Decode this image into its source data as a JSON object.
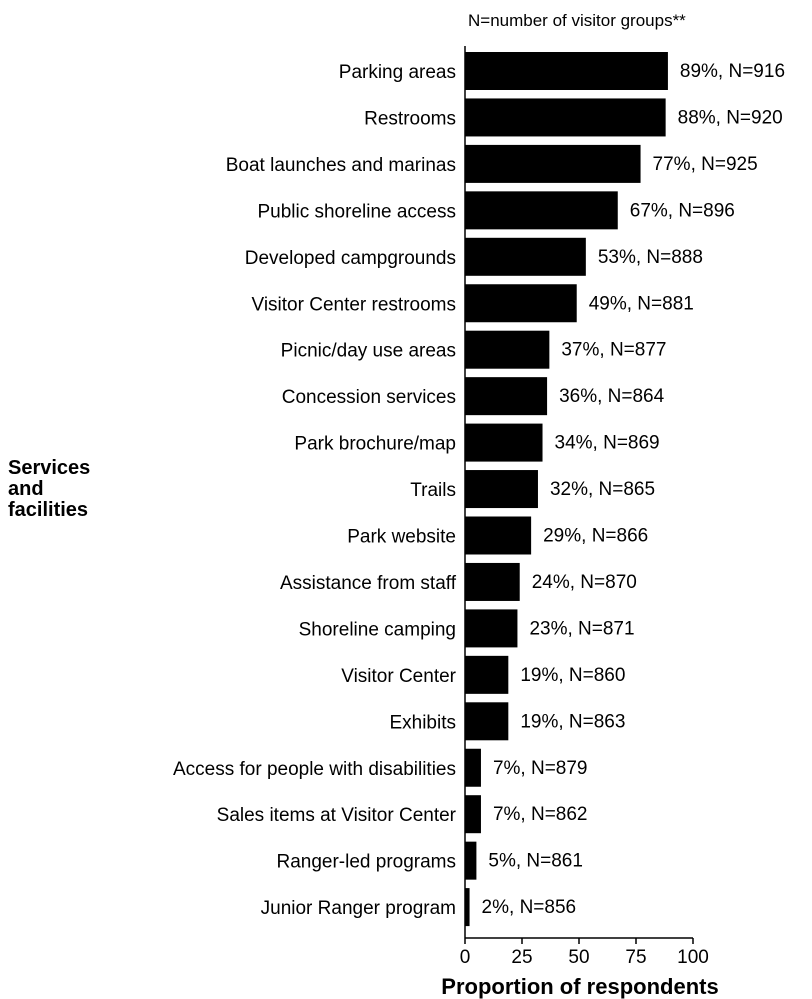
{
  "chart_data": {
    "type": "bar",
    "orientation": "horizontal",
    "note": "N=number of visitor groups**",
    "ylabel": [
      "Services",
      "and",
      "facilities"
    ],
    "xlabel": "Proportion of respondents",
    "xlim": [
      0,
      100
    ],
    "xticks": [
      0,
      25,
      50,
      75,
      100
    ],
    "grid": false,
    "bar_color": "#000000",
    "categories": [
      "Parking areas",
      "Restrooms",
      "Boat launches and marinas",
      "Public shoreline access",
      "Developed campgrounds",
      "Visitor Center restrooms",
      "Picnic/day use areas",
      "Concession services",
      "Park brochure/map",
      "Trails",
      "Park website",
      "Assistance from staff",
      "Shoreline camping",
      "Visitor Center",
      "Exhibits",
      "Access for people with disabilities",
      "Sales items at Visitor Center",
      "Ranger-led programs",
      "Junior Ranger program"
    ],
    "values": [
      89,
      88,
      77,
      67,
      53,
      49,
      37,
      36,
      34,
      32,
      29,
      24,
      23,
      19,
      19,
      7,
      7,
      5,
      2
    ],
    "data_labels": [
      "89%, N=916",
      "88%, N=920",
      "77%, N=925",
      "67%, N=896",
      "53%, N=888",
      "49%, N=881",
      "37%, N=877",
      "36%, N=864",
      "34%, N=869",
      "32%, N=865",
      "29%, N=866",
      "24%, N=870",
      "23%, N=871",
      "19%, N=860",
      "19%, N=863",
      "7%, N=879",
      "7%, N=862",
      "5%, N=861",
      "2%, N=856"
    ]
  }
}
